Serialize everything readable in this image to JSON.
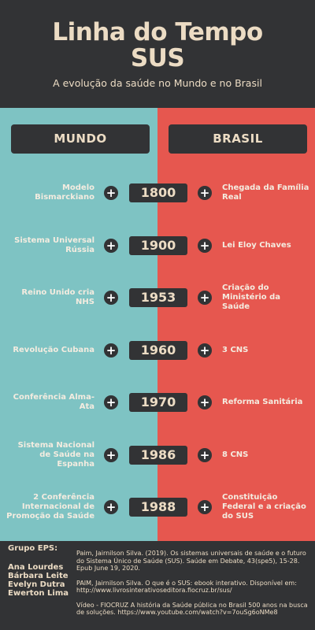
{
  "header": {
    "title_line1": "Linha do Tempo",
    "title_line2": "SUS",
    "subtitle": "A evolução da saúde no Mundo e no Brasil"
  },
  "columns": {
    "left": "MUNDO",
    "right": "BRASIL"
  },
  "colors": {
    "dark": "#323335",
    "mundo_bg": "#7ec3c3",
    "brasil_bg": "#e6574f",
    "cream": "#ecdcc4"
  },
  "icons": {
    "plus": "+"
  },
  "timeline": [
    {
      "mundo": "Modelo Bismarckiano",
      "year": "1800",
      "brasil": "Chegada da Família Real"
    },
    {
      "mundo": "Sistema Universal Rússia",
      "year": "1900",
      "brasil": "Lei Eloy Chaves"
    },
    {
      "mundo": "Reino Unido cria NHS",
      "year": "1953",
      "brasil": "Criação do Ministério da Saúde"
    },
    {
      "mundo": "Revolução Cubana",
      "year": "1960",
      "brasil": "3 CNS"
    },
    {
      "mundo": "Conferência Alma-Ata",
      "year": "1970",
      "brasil": "Reforma Sanitária"
    },
    {
      "mundo": "Sistema Nacional de Saúde na Espanha",
      "year": "1986",
      "brasil": "8 CNS"
    },
    {
      "mundo": "2 Conferência Internacional de Promoção da Saúde",
      "year": "1988",
      "brasil": "Constituição Federal e a criação do SUS"
    }
  ],
  "footer": {
    "group_title": "Grupo EPS:",
    "members": [
      "Ana Lourdes",
      "Bárbara Leite",
      "Evelyn Dutra",
      "Ewerton Lima"
    ],
    "references": [
      "Paim, Jairnilson Silva. (2019). Os sistemas universais de saúde e o futuro do Sistema Único de Saúde (SUS). Saúde em Debate, 43(spe5), 15-28. Epub June 19, 2020.",
      "PAIM, Jairnilson Silva. O que é o SUS: ebook interativo. Disponível em: http://www.livrosinterativoseditora.fiocruz.br/sus/",
      "Vídeo - FIOCRUZ A história da Saúde pública no Brasil 500 anos na busca de soluções. https://www.youtube.com/watch?v=7ouSg6oNMe8"
    ]
  }
}
